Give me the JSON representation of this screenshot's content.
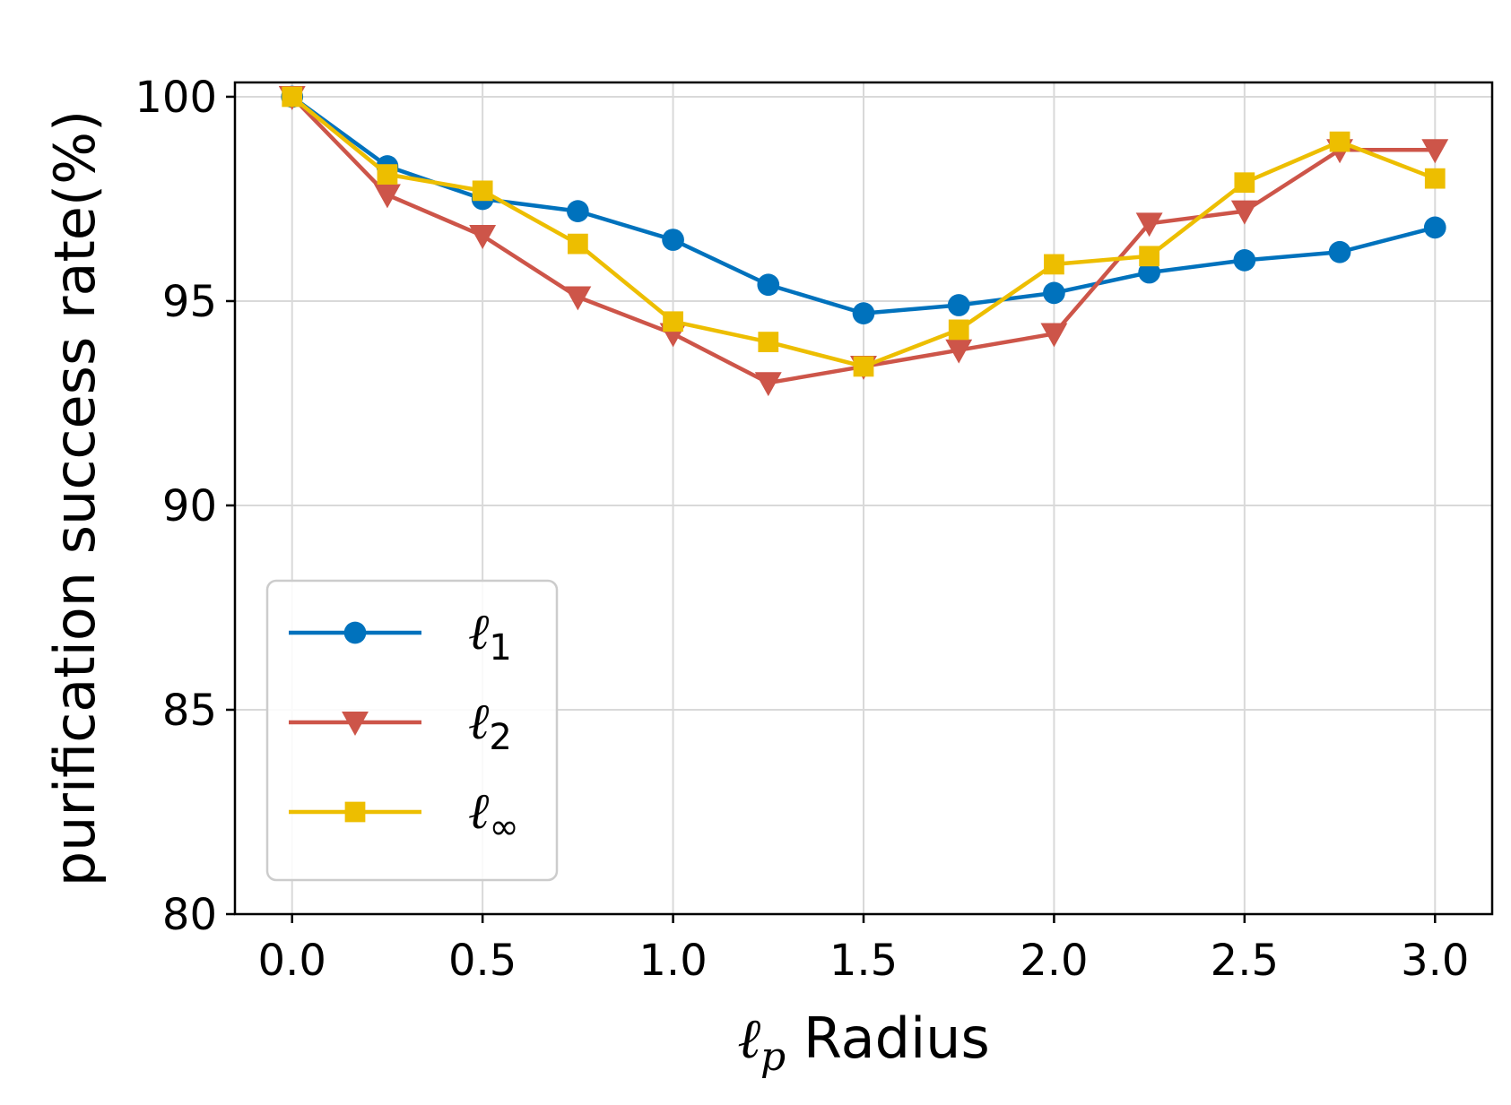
{
  "chart_data": {
    "type": "line",
    "xlabel": "ℓ_p Radius",
    "xlabel_main": "ℓ",
    "xlabel_sub": "p",
    "xlabel_rest": " Radius",
    "ylabel": "purification success rate(%)",
    "xlim": [
      -0.15,
      3.15
    ],
    "ylim": [
      80,
      100.35
    ],
    "x_ticks": [
      0.0,
      0.5,
      1.0,
      1.5,
      2.0,
      2.5,
      3.0
    ],
    "x_tick_labels": [
      "0.0",
      "0.5",
      "1.0",
      "1.5",
      "2.0",
      "2.5",
      "3.0"
    ],
    "y_ticks": [
      80,
      85,
      90,
      95,
      100
    ],
    "y_tick_labels": [
      "80",
      "85",
      "90",
      "95",
      "100"
    ],
    "grid": true,
    "legend_position": "lower-left",
    "x": [
      0.0,
      0.25,
      0.5,
      0.75,
      1.0,
      1.25,
      1.5,
      1.75,
      2.0,
      2.25,
      2.5,
      2.75,
      3.0
    ],
    "series": [
      {
        "name": "ℓ1",
        "legend_main": "ℓ",
        "legend_sub": "1",
        "color": "#0072bd",
        "marker": "circle",
        "values": [
          100.0,
          98.3,
          97.5,
          97.2,
          96.5,
          95.4,
          94.7,
          94.9,
          95.2,
          95.7,
          96.0,
          96.2,
          96.8
        ]
      },
      {
        "name": "ℓ2",
        "legend_main": "ℓ",
        "legend_sub": "2",
        "color": "#cd5549",
        "marker": "triangle-down",
        "values": [
          100.0,
          97.6,
          96.6,
          95.1,
          94.2,
          93.0,
          93.4,
          93.8,
          94.2,
          96.9,
          97.2,
          98.7,
          98.7
        ]
      },
      {
        "name": "ℓ∞",
        "legend_main": "ℓ",
        "legend_sub": "∞",
        "color": "#edbe00",
        "marker": "square",
        "values": [
          100.0,
          98.1,
          97.7,
          96.4,
          94.5,
          94.0,
          93.4,
          94.3,
          95.9,
          96.1,
          97.9,
          98.9,
          98.0
        ]
      }
    ]
  }
}
